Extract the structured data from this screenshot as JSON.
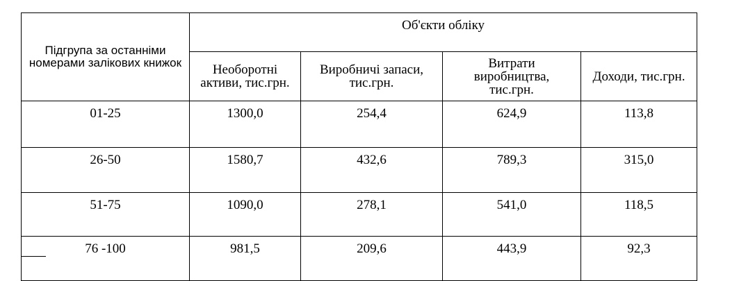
{
  "table": {
    "group_header": "Підгрупа за останніми номерами залікових книжок",
    "objects_header": "Об'єкти обліку",
    "columns": [
      "Необоротні активи, тис.грн.",
      "Виробничі запаси, тис.грн.",
      "Витрати виробництва, тис.грн.",
      "Доходи, тис.грн."
    ],
    "rows": [
      [
        "01-25",
        "1300,0",
        "254,4",
        "624,9",
        "113,8"
      ],
      [
        "26-50",
        "1580,7",
        "432,6",
        "789,3",
        "315,0"
      ],
      [
        "51-75",
        "1090,0",
        "278,1",
        "541,0",
        "118,5"
      ],
      [
        "76 -100",
        "981,5",
        "209,6",
        "443,9",
        "92,3"
      ]
    ]
  }
}
